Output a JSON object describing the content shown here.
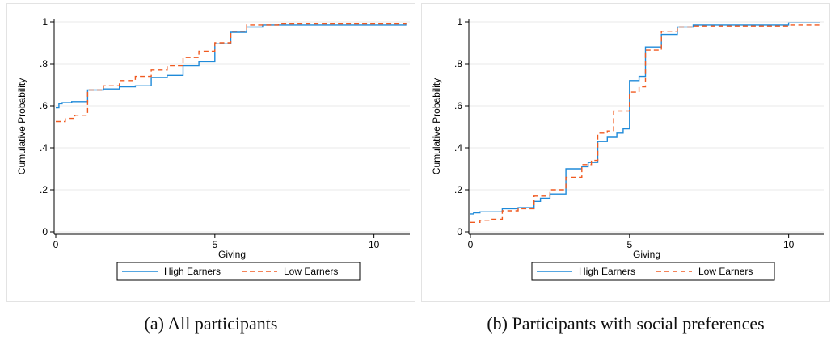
{
  "colors": {
    "high": "#1f8ad9",
    "low": "#f05a20",
    "grid": "#e9e9e9",
    "axis": "#000000"
  },
  "chart_data": [
    {
      "type": "line",
      "panel": "a",
      "caption": "(a) All participants",
      "xlabel": "Giving",
      "ylabel": "Cumulative Probability",
      "xlim": [
        0,
        11
      ],
      "ylim": [
        0,
        1
      ],
      "xticks": [
        {
          "value": 0,
          "label": "0"
        },
        {
          "value": 5,
          "label": "5"
        },
        {
          "value": 10,
          "label": "10"
        }
      ],
      "yticks": [
        {
          "value": 0,
          "label": "0"
        },
        {
          "value": 0.2,
          "label": ".2"
        },
        {
          "value": 0.4,
          "label": ".4"
        },
        {
          "value": 0.6,
          "label": ".6"
        },
        {
          "value": 0.8,
          "label": ".8"
        },
        {
          "value": 1,
          "label": "1"
        }
      ],
      "grid": true,
      "legend_position": "bottom",
      "series": [
        {
          "name": "High Earners",
          "style": "solid",
          "color": "#1f8ad9",
          "x": [
            0,
            0.1,
            0.2,
            0.5,
            1,
            1.5,
            2,
            2.5,
            3,
            3.5,
            4,
            4.5,
            5,
            5.5,
            6,
            6.5,
            11
          ],
          "y": [
            0.59,
            0.61,
            0.615,
            0.62,
            0.675,
            0.68,
            0.69,
            0.695,
            0.735,
            0.745,
            0.79,
            0.81,
            0.895,
            0.95,
            0.975,
            0.985,
            0.995
          ]
        },
        {
          "name": "Low Earners",
          "style": "dashed",
          "color": "#f05a20",
          "x": [
            0,
            0.3,
            0.6,
            1,
            1.5,
            2,
            2.5,
            3,
            3.5,
            4,
            4.5,
            5,
            5.5,
            6,
            7,
            11
          ],
          "y": [
            0.525,
            0.54,
            0.555,
            0.675,
            0.695,
            0.72,
            0.74,
            0.77,
            0.79,
            0.83,
            0.86,
            0.9,
            0.955,
            0.985,
            0.99,
            0.995
          ]
        }
      ]
    },
    {
      "type": "line",
      "panel": "b",
      "caption": "(b) Participants with social preferences",
      "xlabel": "Giving",
      "ylabel": "Cumulative Probability",
      "xlim": [
        0,
        11
      ],
      "ylim": [
        0,
        1
      ],
      "xticks": [
        {
          "value": 0,
          "label": "0"
        },
        {
          "value": 5,
          "label": "5"
        },
        {
          "value": 10,
          "label": "10"
        }
      ],
      "yticks": [
        {
          "value": 0,
          "label": "0"
        },
        {
          "value": 0.2,
          "label": ".2"
        },
        {
          "value": 0.4,
          "label": ".4"
        },
        {
          "value": 0.6,
          "label": ".6"
        },
        {
          "value": 0.8,
          "label": ".8"
        },
        {
          "value": 1,
          "label": "1"
        }
      ],
      "grid": true,
      "legend_position": "bottom",
      "series": [
        {
          "name": "High Earners",
          "style": "solid",
          "color": "#1f8ad9",
          "x": [
            0,
            0.1,
            0.3,
            1,
            1.5,
            2,
            2.2,
            2.5,
            3,
            3.5,
            3.7,
            4,
            4.3,
            4.6,
            4.8,
            5,
            5.3,
            5.5,
            6,
            6.5,
            7,
            10,
            11
          ],
          "y": [
            0.085,
            0.09,
            0.095,
            0.11,
            0.115,
            0.145,
            0.16,
            0.18,
            0.3,
            0.31,
            0.33,
            0.43,
            0.45,
            0.47,
            0.49,
            0.72,
            0.74,
            0.88,
            0.94,
            0.975,
            0.985,
            0.995,
            0.995
          ]
        },
        {
          "name": "Low Earners",
          "style": "dashed",
          "color": "#f05a20",
          "x": [
            0,
            0.3,
            0.6,
            1,
            1.5,
            2,
            2.5,
            3,
            3.5,
            3.8,
            4,
            4.3,
            4.5,
            5,
            5.3,
            5.5,
            6,
            6.5,
            7,
            9,
            10,
            11
          ],
          "y": [
            0.045,
            0.055,
            0.06,
            0.1,
            0.11,
            0.17,
            0.2,
            0.26,
            0.32,
            0.34,
            0.47,
            0.48,
            0.575,
            0.665,
            0.69,
            0.865,
            0.955,
            0.975,
            0.98,
            0.98,
            0.985,
            0.985
          ]
        }
      ]
    }
  ]
}
